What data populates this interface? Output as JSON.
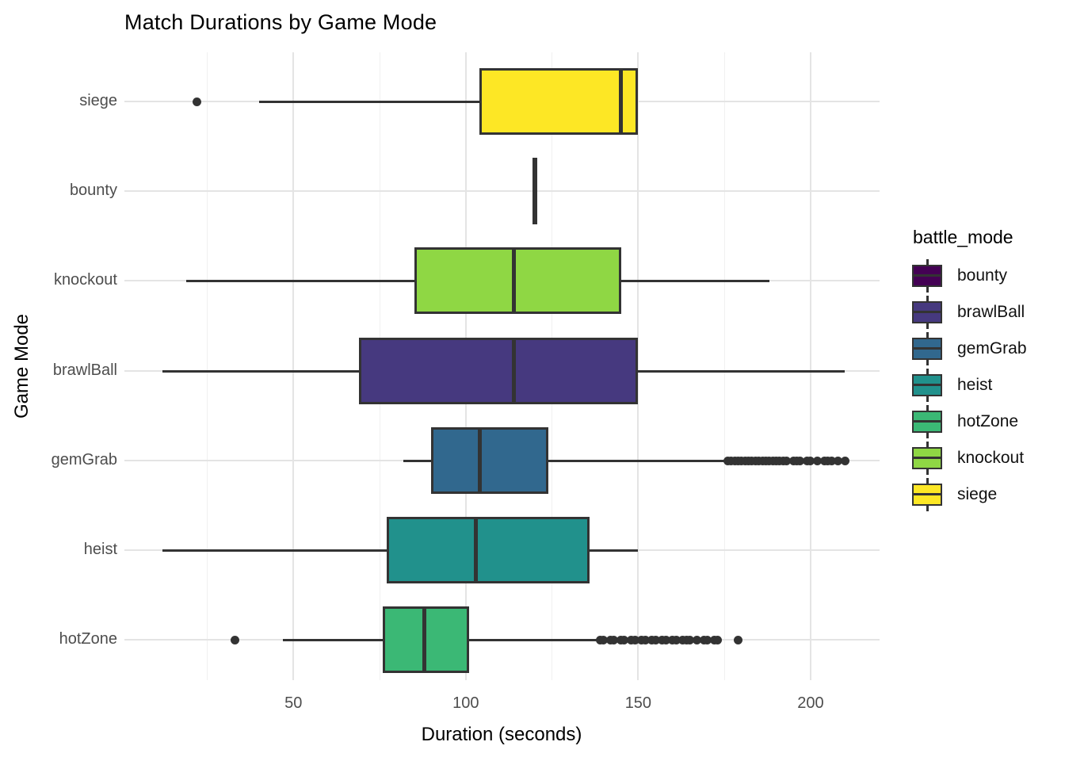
{
  "title": "Match Durations by Game Mode",
  "axes": {
    "x_title": "Duration (seconds)",
    "y_title": "Game Mode",
    "x_ticks": [
      50,
      100,
      150,
      200
    ],
    "x_minor_ticks": [
      25,
      75,
      125,
      175
    ],
    "x_range": [
      1,
      220
    ],
    "y_categories": [
      "siege",
      "bounty",
      "knockout",
      "brawlBall",
      "gemGrab",
      "heist",
      "hotZone"
    ]
  },
  "legend": {
    "title": "battle_mode",
    "entries": [
      {
        "label": "bounty",
        "color": "#440154"
      },
      {
        "label": "brawlBall",
        "color": "#46397f"
      },
      {
        "label": "gemGrab",
        "color": "#31688e"
      },
      {
        "label": "heist",
        "color": "#21918c"
      },
      {
        "label": "hotZone",
        "color": "#3bb875"
      },
      {
        "label": "knockout",
        "color": "#8fd744"
      },
      {
        "label": "siege",
        "color": "#fde725"
      }
    ]
  },
  "chart_data": {
    "type": "boxplot",
    "orientation": "horizontal",
    "title": "Match Durations by Game Mode",
    "xlabel": "Duration (seconds)",
    "ylabel": "Game Mode",
    "xlim": [
      1,
      220
    ],
    "grid": "major-and-minor-x",
    "legend_position": "right",
    "categories": [
      "siege",
      "bounty",
      "knockout",
      "brawlBall",
      "gemGrab",
      "heist",
      "hotZone"
    ],
    "series": [
      {
        "mode": "siege",
        "color": "#fde725",
        "min": 40,
        "q1": 104,
        "median": 145,
        "q3": 150,
        "max": 150,
        "outliers": [
          22
        ]
      },
      {
        "mode": "bounty",
        "color": "#440154",
        "min": 120,
        "q1": 120,
        "median": 120,
        "q3": 120,
        "max": 120,
        "outliers": []
      },
      {
        "mode": "knockout",
        "color": "#8fd744",
        "min": 19,
        "q1": 85,
        "median": 114,
        "q3": 145,
        "max": 188,
        "outliers": []
      },
      {
        "mode": "brawlBall",
        "color": "#46397f",
        "min": 12,
        "q1": 69,
        "median": 114,
        "q3": 150,
        "max": 210,
        "outliers": []
      },
      {
        "mode": "gemGrab",
        "color": "#31688e",
        "min": 82,
        "q1": 90,
        "median": 104,
        "q3": 124,
        "max": 175,
        "outliers": [
          176,
          177,
          178,
          179,
          180,
          181,
          182,
          183,
          184,
          185,
          186,
          187,
          188,
          189,
          190,
          191,
          192,
          193,
          195,
          196,
          197,
          199,
          200,
          202,
          204,
          205,
          206,
          208,
          210
        ]
      },
      {
        "mode": "heist",
        "color": "#21918c",
        "min": 12,
        "q1": 77,
        "median": 103,
        "q3": 136,
        "max": 150,
        "outliers": []
      },
      {
        "mode": "hotZone",
        "color": "#3bb875",
        "min": 47,
        "q1": 76,
        "median": 88,
        "q3": 101,
        "max": 138,
        "outliers": [
          33,
          139,
          140,
          142,
          143,
          145,
          146,
          148,
          149,
          151,
          152,
          154,
          155,
          157,
          158,
          160,
          161,
          163,
          164,
          165,
          167,
          169,
          170,
          172,
          173,
          179
        ]
      }
    ]
  },
  "style": {
    "line_color": "#333333",
    "grid_major_color": "#e4e4e4",
    "grid_minor_color": "#f0f0f0",
    "tick_label_color": "#4d4d4d",
    "background": "#ffffff"
  }
}
